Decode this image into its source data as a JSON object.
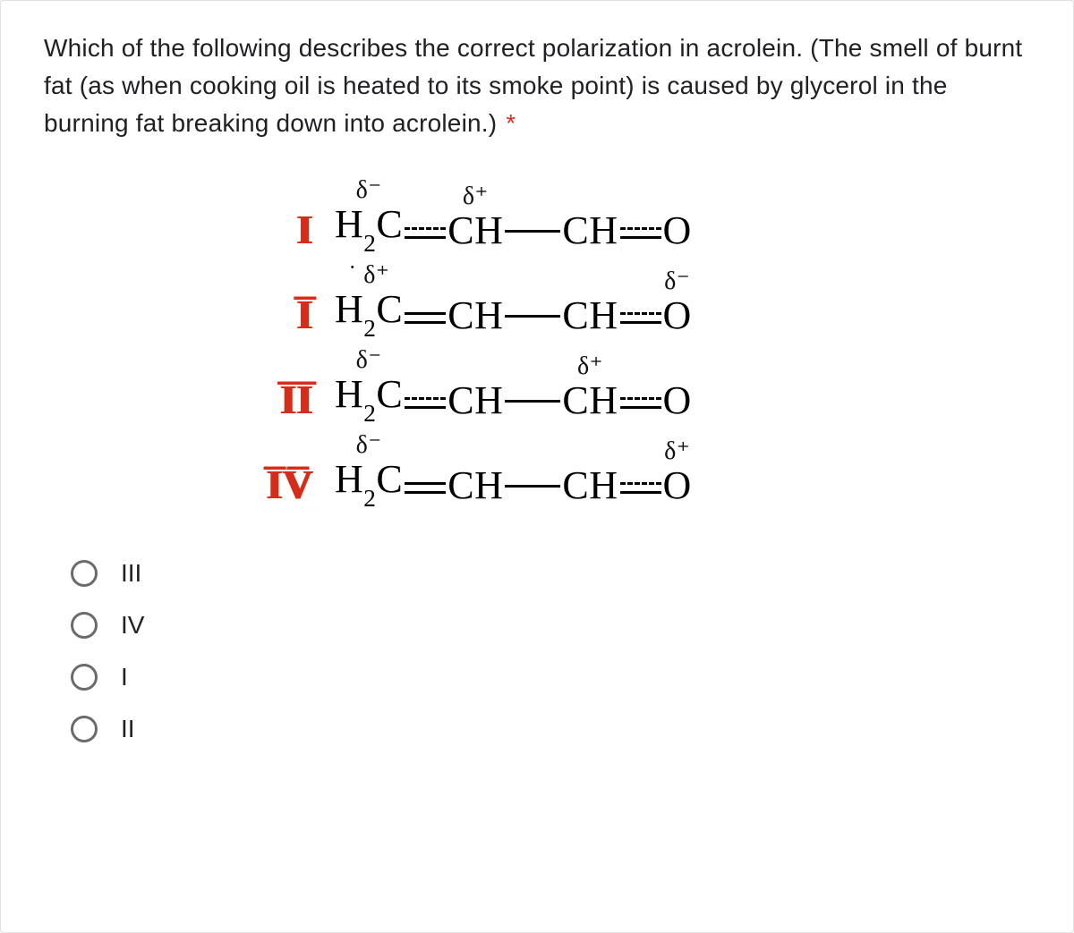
{
  "question_text": "Which of the following describes the correct polarization in acrolein. (The smell of burnt fat (as when cooking oil is heated to its smoke point) is caused by glycerol in the burning fat breaking down into acrolein.)",
  "required_marker": "*",
  "colors": {
    "numeral": "#d62c1a",
    "text": "#202124",
    "structure": "#000000",
    "radio_border": "#6b6b6b",
    "required": "#d93025",
    "card_bg": "#ffffff"
  },
  "typography": {
    "question_fontsize": 28,
    "formula_fontsize": 44,
    "charge_fontsize": 28,
    "numeral_fontsize": 46,
    "option_fontsize": 28,
    "formula_font": "Times New Roman"
  },
  "structures": [
    {
      "numeral": "I",
      "charges": {
        "C1": "δ⁻",
        "CH_mid": "δ⁺",
        "CH_end": "",
        "O": ""
      }
    },
    {
      "numeral": "I̅",
      "charges": {
        "C1": "˙ δ⁺",
        "CH_mid": "",
        "CH_end": "",
        "O": "δ⁻"
      }
    },
    {
      "numeral": "I̅I̅",
      "charges": {
        "C1": "δ⁻",
        "CH_mid": "",
        "CH_end": "δ⁺",
        "O": ""
      }
    },
    {
      "numeral": "I̅V̅",
      "charges": {
        "C1": "δ⁻",
        "CH_mid": "",
        "CH_end": "",
        "O": "δ⁺"
      }
    }
  ],
  "formula_atoms": {
    "H2C": "H₂C",
    "CH": "CH",
    "O": "O"
  },
  "options": [
    {
      "value": "III",
      "label": "III"
    },
    {
      "value": "IV",
      "label": "IV"
    },
    {
      "value": "I",
      "label": "I"
    },
    {
      "value": "II",
      "label": "II"
    }
  ]
}
